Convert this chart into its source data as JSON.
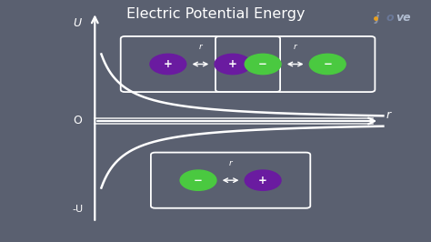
{
  "background_color": "#5a6070",
  "title": "Electric Potential Energy",
  "title_color": "white",
  "title_fontsize": 11.5,
  "axis_color": "white",
  "curve_color": "white",
  "curve_lw": 1.8,
  "label_color": "white",
  "label_fontsize": 9,
  "U_label": "U",
  "neg_U_label": "-U",
  "O_label": "O",
  "r_label": "r",
  "purple_color": "#6a1ba0",
  "green_color": "#4ac940",
  "box_edge_color": "white",
  "ox": 0.22,
  "oy": 0.5,
  "xlim": [
    0,
    1
  ],
  "ylim": [
    0,
    1
  ]
}
